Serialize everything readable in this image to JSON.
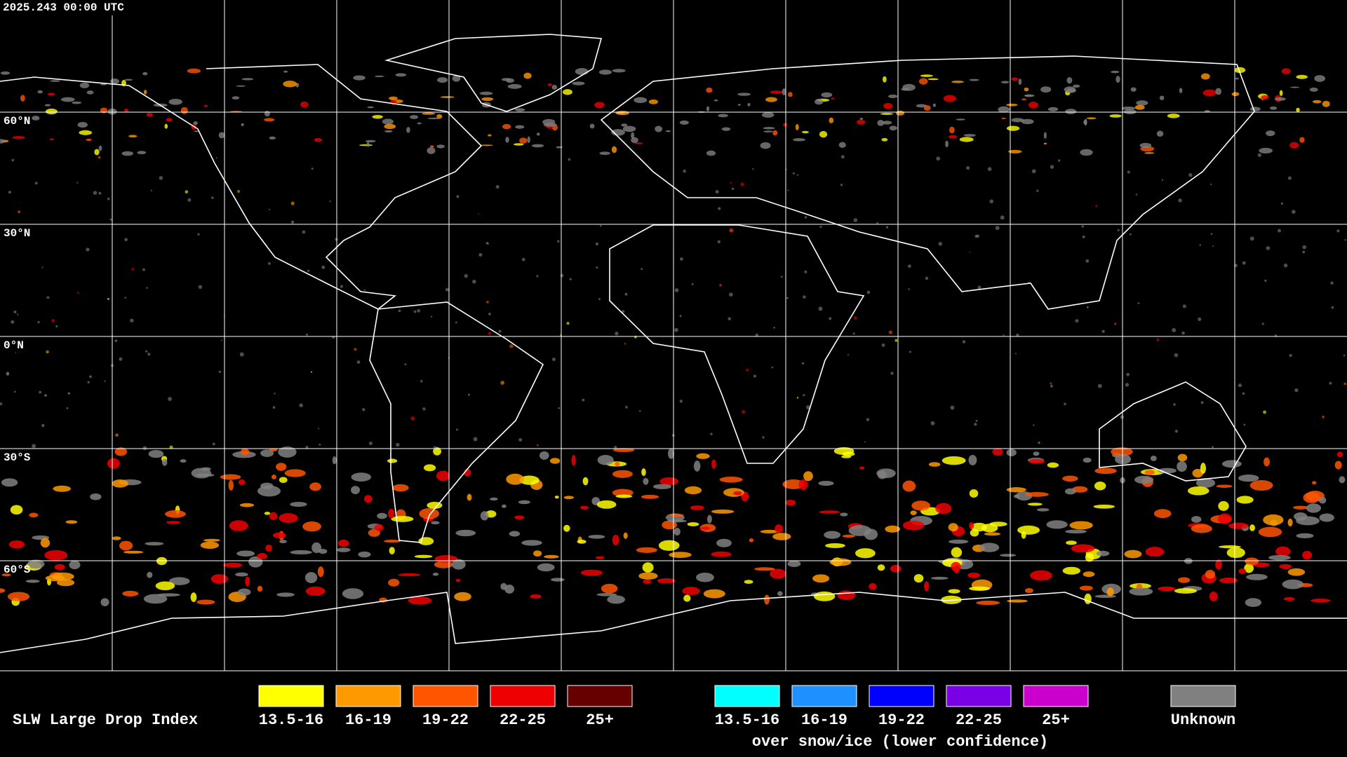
{
  "header": {
    "timestamp": "2025.243 00:00 UTC"
  },
  "lat_labels": [
    "60°N",
    "30°N",
    "0°N",
    "30°S",
    "60°S"
  ],
  "legend": {
    "title": "SLW Large Drop Index",
    "items": [
      {
        "label": "13.5-16",
        "color": "#ffff00"
      },
      {
        "label": "16-19",
        "color": "#ff9900"
      },
      {
        "label": "19-22",
        "color": "#ff5500"
      },
      {
        "label": "22-25",
        "color": "#ee0000"
      },
      {
        "label": "25+",
        "color": "#660000"
      }
    ],
    "snow_items": [
      {
        "label": "13.5-16",
        "color": "#00ffff"
      },
      {
        "label": "16-19",
        "color": "#1e90ff"
      },
      {
        "label": "19-22",
        "color": "#0000ff"
      },
      {
        "label": "22-25",
        "color": "#7a00e6"
      },
      {
        "label": "25+",
        "color": "#cc00cc"
      }
    ],
    "snow_caption": "over snow/ice (lower confidence)",
    "unknown": {
      "label": "Unknown",
      "color": "#808080"
    }
  }
}
